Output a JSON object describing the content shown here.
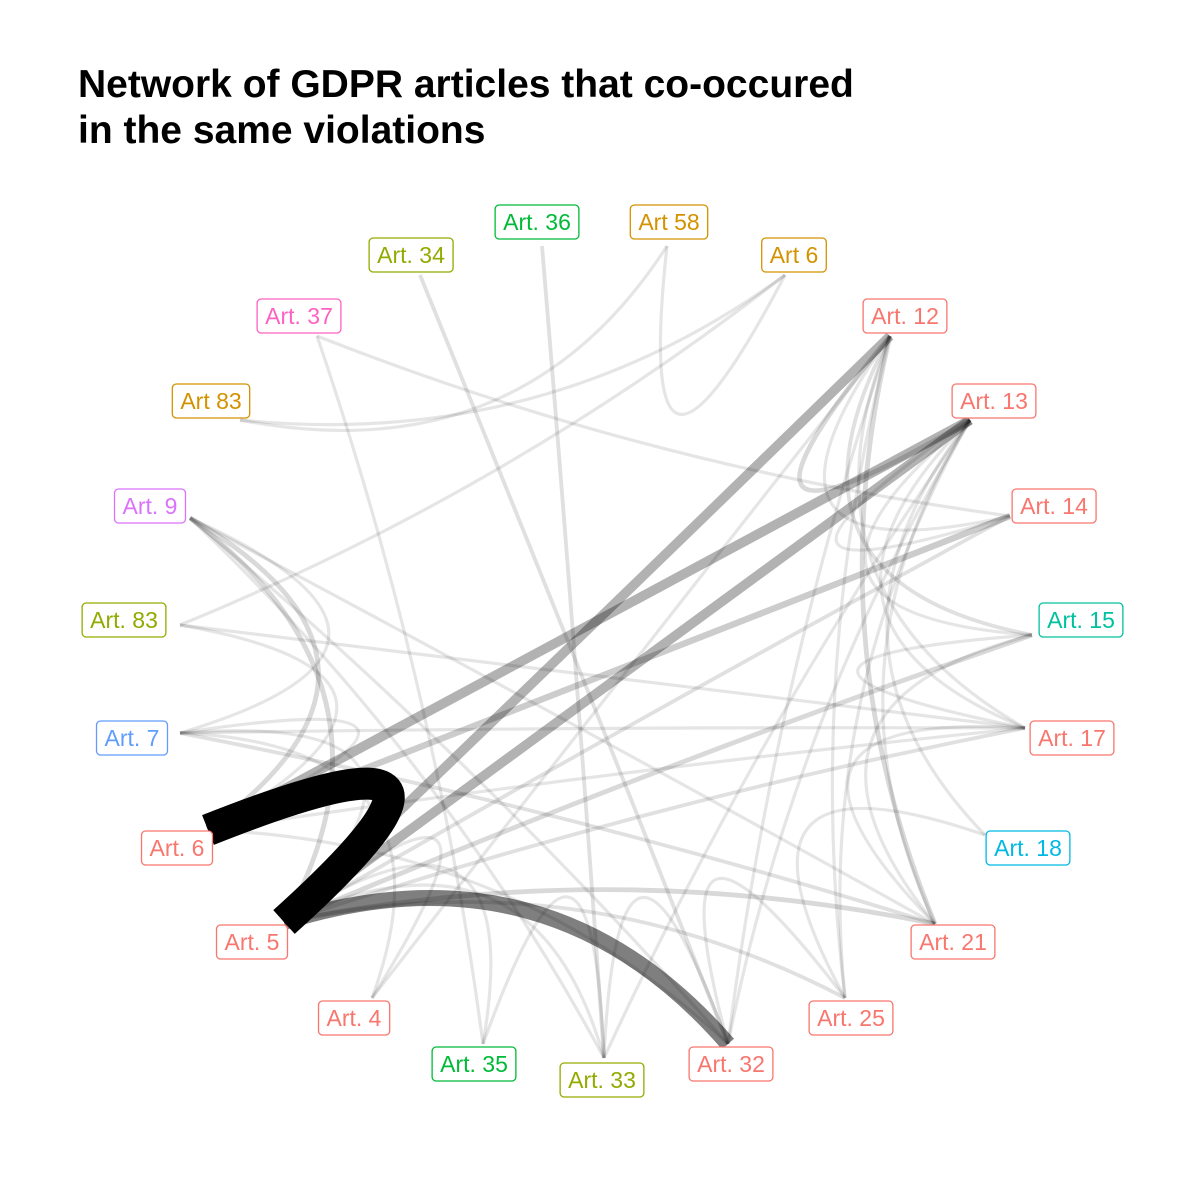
{
  "title": {
    "line1": "Network of GDPR articles that co-occured",
    "line2": "in the same violations"
  },
  "colors": {
    "red": "#F8766D",
    "olive": "#93AA00",
    "green": "#00BA38",
    "gold": "#D39200",
    "pink": "#FF61C3",
    "violet": "#DB72FB",
    "blue": "#619CFF",
    "teal": "#00C19F",
    "cyan": "#00B9E3",
    "edge": "#000000"
  },
  "nodes": [
    {
      "id": "art36",
      "label": "Art. 36",
      "color": "#00BA38"
    },
    {
      "id": "art58",
      "label": "Art 58",
      "color": "#D39200"
    },
    {
      "id": "art6b",
      "label": "Art 6",
      "color": "#D39200"
    },
    {
      "id": "art12",
      "label": "Art. 12",
      "color": "#F8766D"
    },
    {
      "id": "art13",
      "label": "Art. 13",
      "color": "#F8766D"
    },
    {
      "id": "art14",
      "label": "Art. 14",
      "color": "#F8766D"
    },
    {
      "id": "art15",
      "label": "Art. 15",
      "color": "#00C19F"
    },
    {
      "id": "art17",
      "label": "Art. 17",
      "color": "#F8766D"
    },
    {
      "id": "art18",
      "label": "Art. 18",
      "color": "#00B9E3"
    },
    {
      "id": "art21",
      "label": "Art. 21",
      "color": "#F8766D"
    },
    {
      "id": "art25",
      "label": "Art. 25",
      "color": "#F8766D"
    },
    {
      "id": "art32",
      "label": "Art. 32",
      "color": "#F8766D"
    },
    {
      "id": "art33",
      "label": "Art. 33",
      "color": "#93AA00"
    },
    {
      "id": "art35",
      "label": "Art. 35",
      "color": "#00BA38"
    },
    {
      "id": "art4",
      "label": "Art. 4",
      "color": "#F8766D"
    },
    {
      "id": "art5",
      "label": "Art. 5",
      "color": "#F8766D"
    },
    {
      "id": "art6",
      "label": "Art. 6",
      "color": "#F8766D"
    },
    {
      "id": "art7",
      "label": "Art. 7",
      "color": "#619CFF"
    },
    {
      "id": "art83b",
      "label": "Art. 83",
      "color": "#93AA00"
    },
    {
      "id": "art9",
      "label": "Art. 9",
      "color": "#DB72FB"
    },
    {
      "id": "art83a",
      "label": "Art 83",
      "color": "#D39200"
    },
    {
      "id": "art37",
      "label": "Art. 37",
      "color": "#FF61C3"
    },
    {
      "id": "art34",
      "label": "Art. 34",
      "color": "#93AA00"
    }
  ],
  "edges": [
    {
      "from": "art6",
      "to": "art5",
      "weight": 10
    },
    {
      "from": "art5",
      "to": "art32",
      "weight": 5
    },
    {
      "from": "art5",
      "to": "art13",
      "weight": 3
    },
    {
      "from": "art6",
      "to": "art13",
      "weight": 3
    },
    {
      "from": "art5",
      "to": "art12",
      "weight": 3
    },
    {
      "from": "art6",
      "to": "art14",
      "weight": 2
    },
    {
      "from": "art5",
      "to": "art21",
      "weight": 1.5
    },
    {
      "from": "art5",
      "to": "art15",
      "weight": 1.5
    },
    {
      "from": "art5",
      "to": "art17",
      "weight": 1.2
    },
    {
      "from": "art5",
      "to": "art14",
      "weight": 1.2
    },
    {
      "from": "art5",
      "to": "art25",
      "weight": 1.2
    },
    {
      "from": "art5",
      "to": "art4",
      "weight": 1
    },
    {
      "from": "art5",
      "to": "art35",
      "weight": 1
    },
    {
      "from": "art5",
      "to": "art7",
      "weight": 1
    },
    {
      "from": "art5",
      "to": "art9",
      "weight": 1.5
    },
    {
      "from": "art6",
      "to": "art9",
      "weight": 1.5
    },
    {
      "from": "art6",
      "to": "art7",
      "weight": 1
    },
    {
      "from": "art6",
      "to": "art17",
      "weight": 1
    },
    {
      "from": "art6",
      "to": "art32",
      "weight": 1
    },
    {
      "from": "art6",
      "to": "art83b",
      "weight": 1
    },
    {
      "from": "art12",
      "to": "art13",
      "weight": 1.5
    },
    {
      "from": "art12",
      "to": "art14",
      "weight": 1
    },
    {
      "from": "art12",
      "to": "art15",
      "weight": 1.2
    },
    {
      "from": "art12",
      "to": "art17",
      "weight": 1
    },
    {
      "from": "art12",
      "to": "art21",
      "weight": 1.5
    },
    {
      "from": "art12",
      "to": "art25",
      "weight": 1
    },
    {
      "from": "art12",
      "to": "art32",
      "weight": 1
    },
    {
      "from": "art13",
      "to": "art14",
      "weight": 1
    },
    {
      "from": "art13",
      "to": "art15",
      "weight": 1
    },
    {
      "from": "art13",
      "to": "art17",
      "weight": 1
    },
    {
      "from": "art13",
      "to": "art21",
      "weight": 1
    },
    {
      "from": "art13",
      "to": "art18",
      "weight": 1
    },
    {
      "from": "art13",
      "to": "art25",
      "weight": 1
    },
    {
      "from": "art13",
      "to": "art32",
      "weight": 1
    },
    {
      "from": "art13",
      "to": "art33",
      "weight": 1
    },
    {
      "from": "art15",
      "to": "art17",
      "weight": 1
    },
    {
      "from": "art15",
      "to": "art21",
      "weight": 1
    },
    {
      "from": "art17",
      "to": "art21",
      "weight": 1
    },
    {
      "from": "art17",
      "to": "art7",
      "weight": 1
    },
    {
      "from": "art17",
      "to": "art83b",
      "weight": 1
    },
    {
      "from": "art18",
      "to": "art25",
      "weight": 1
    },
    {
      "from": "art21",
      "to": "art7",
      "weight": 1.2
    },
    {
      "from": "art25",
      "to": "art32",
      "weight": 1
    },
    {
      "from": "art32",
      "to": "art33",
      "weight": 1
    },
    {
      "from": "art33",
      "to": "art9",
      "weight": 1
    },
    {
      "from": "art33",
      "to": "art36",
      "weight": 1.2
    },
    {
      "from": "art33",
      "to": "art35",
      "weight": 1
    },
    {
      "from": "art32",
      "to": "art34",
      "weight": 1.2
    },
    {
      "from": "art32",
      "to": "art9",
      "weight": 1
    },
    {
      "from": "art35",
      "to": "art37",
      "weight": 1
    },
    {
      "from": "art4",
      "to": "art12",
      "weight": 1
    },
    {
      "from": "art4",
      "to": "art7",
      "weight": 1
    },
    {
      "from": "art9",
      "to": "art7",
      "weight": 1
    },
    {
      "from": "art9",
      "to": "art21",
      "weight": 1
    },
    {
      "from": "art83a",
      "to": "art6b",
      "weight": 1
    },
    {
      "from": "art83b",
      "to": "art6b",
      "weight": 1
    },
    {
      "from": "art37",
      "to": "art14",
      "weight": 1
    },
    {
      "from": "art58",
      "to": "art6b",
      "weight": 1
    },
    {
      "from": "art58",
      "to": "art83a",
      "weight": 1
    },
    {
      "from": "art5",
      "to": "art33",
      "weight": 1
    }
  ]
}
